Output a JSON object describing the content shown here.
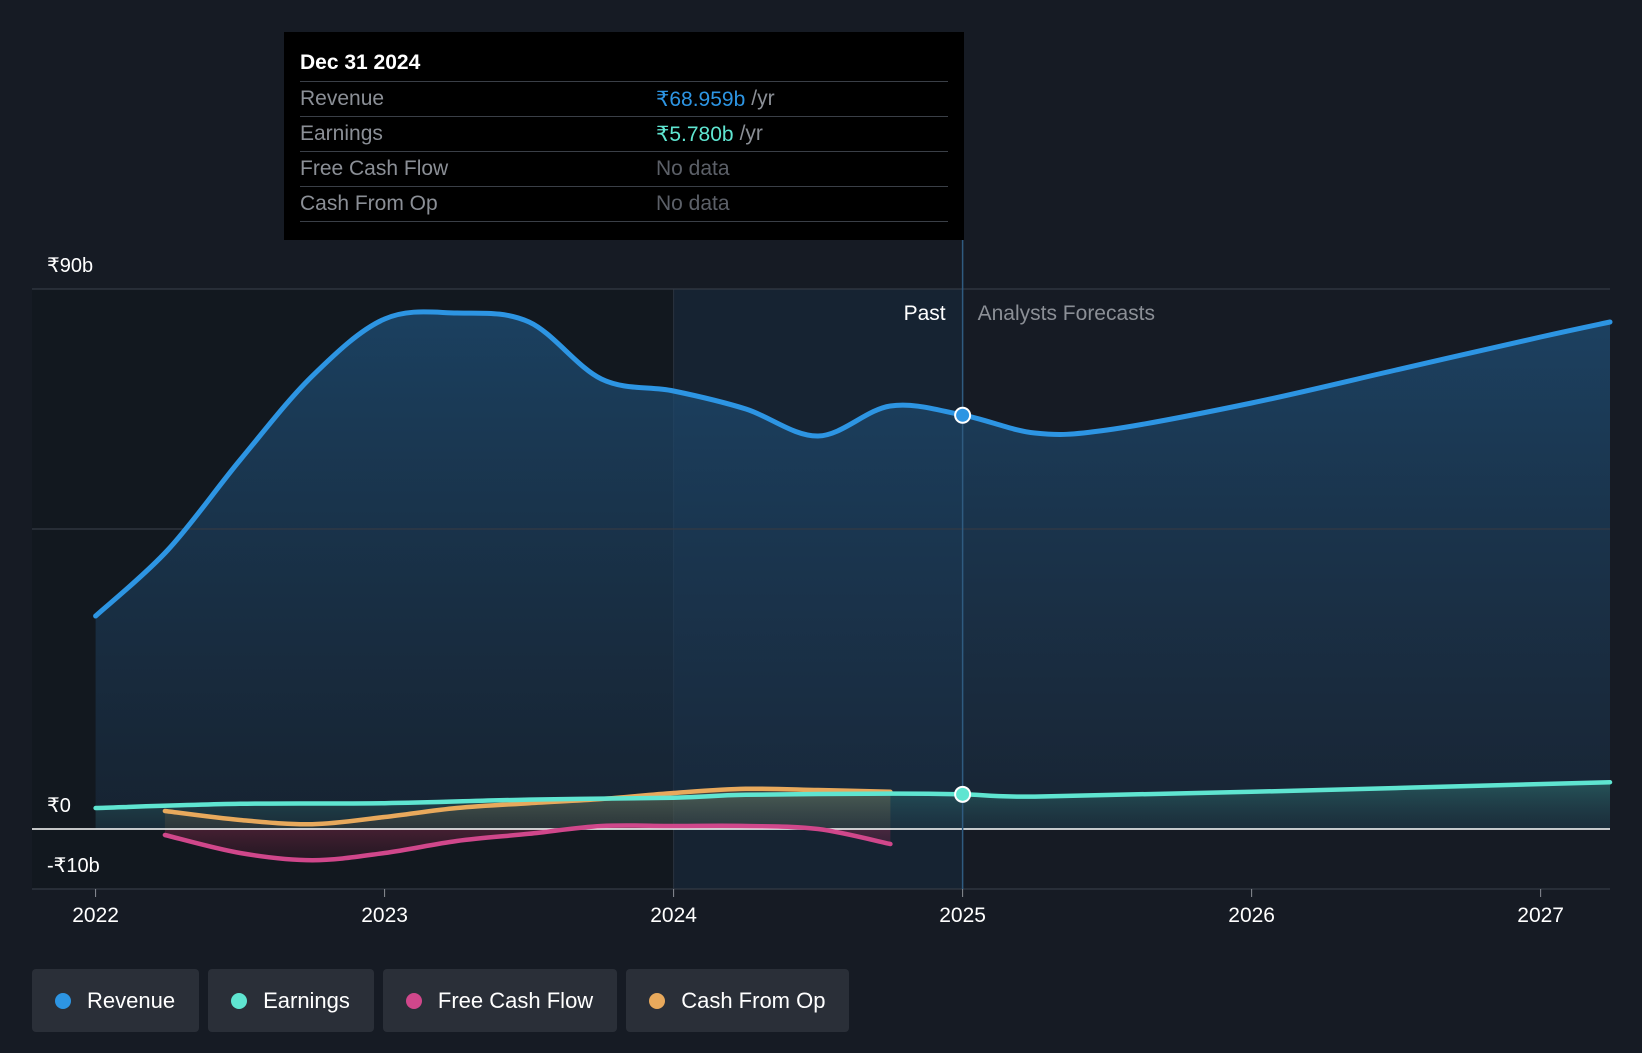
{
  "colors": {
    "background": "#161b24",
    "revenue": "#2d95e3",
    "earnings": "#5fe5d1",
    "free_cash_flow": "#d0478b",
    "cash_from_op": "#e8a95c",
    "grid": "#343a44",
    "axis_text": "#ffffff",
    "past_label": "#ffffff",
    "forecast_label": "#8b8f96"
  },
  "tooltip": {
    "date": "Dec 31 2024",
    "rows": [
      {
        "label": "Revenue",
        "value": "₹68.959b",
        "unit": "/yr",
        "color": "#2d95e3"
      },
      {
        "label": "Earnings",
        "value": "₹5.780b",
        "unit": "/yr",
        "color": "#5fe5d1"
      },
      {
        "label": "Free Cash Flow",
        "value": "No data",
        "unit": "",
        "color": "#5c6068"
      },
      {
        "label": "Cash From Op",
        "value": "No data",
        "unit": "",
        "color": "#5c6068"
      }
    ]
  },
  "chart_data": {
    "type": "line",
    "title": "",
    "xlabel": "",
    "ylabel": "",
    "xlim": [
      2021.78,
      2027.24
    ],
    "ylim": [
      -10,
      90
    ],
    "y_ticks": [
      {
        "value": 90,
        "label": "₹90b"
      },
      {
        "value": 0,
        "label": "₹0"
      },
      {
        "value": -10,
        "label": "-₹10b"
      }
    ],
    "gridlines": [
      90,
      50,
      0,
      -10
    ],
    "x_ticks": [
      {
        "value": 2022,
        "label": "2022"
      },
      {
        "value": 2023,
        "label": "2023"
      },
      {
        "value": 2024,
        "label": "2024"
      },
      {
        "value": 2025,
        "label": "2025"
      },
      {
        "value": 2026,
        "label": "2026"
      },
      {
        "value": 2027,
        "label": "2027"
      }
    ],
    "highlight_range": [
      2024.0,
      2025.0
    ],
    "divider_x": 2025.0,
    "past_label": "Past",
    "forecast_label": "Analysts Forecasts",
    "series": [
      {
        "name": "Revenue",
        "key": "revenue",
        "fill": true,
        "x": [
          2022.0,
          2022.25,
          2022.5,
          2022.75,
          2023.0,
          2023.25,
          2023.5,
          2023.75,
          2024.0,
          2024.25,
          2024.5,
          2024.75,
          2025.0,
          2025.25,
          2025.5,
          2026.0,
          2026.5,
          2027.0,
          2027.24
        ],
        "y": [
          35.5,
          46.5,
          61.5,
          75.5,
          85.0,
          86.0,
          84.5,
          75.0,
          73.0,
          70.0,
          65.5,
          70.5,
          69.0,
          66.0,
          66.5,
          71.0,
          76.5,
          82.0,
          84.5
        ]
      },
      {
        "name": "Earnings",
        "key": "earnings",
        "fill": true,
        "x": [
          2022.0,
          2022.5,
          2023.0,
          2023.5,
          2024.0,
          2024.25,
          2024.75,
          2025.0,
          2025.25,
          2026.0,
          2027.24
        ],
        "y": [
          3.5,
          4.2,
          4.3,
          4.9,
          5.2,
          5.7,
          5.9,
          5.78,
          5.4,
          6.2,
          7.8
        ]
      },
      {
        "name": "Free Cash Flow",
        "key": "free_cash_flow",
        "fill": true,
        "x": [
          2022.24,
          2022.5,
          2022.75,
          2023.0,
          2023.25,
          2023.5,
          2023.75,
          2024.0,
          2024.25,
          2024.5,
          2024.75
        ],
        "y": [
          -1.0,
          -4.0,
          -5.2,
          -4.0,
          -2.0,
          -0.8,
          0.5,
          0.5,
          0.5,
          0.0,
          -2.5
        ]
      },
      {
        "name": "Cash From Op",
        "key": "cash_from_op",
        "fill": true,
        "x": [
          2022.24,
          2022.5,
          2022.75,
          2023.0,
          2023.25,
          2023.5,
          2023.75,
          2024.0,
          2024.25,
          2024.5,
          2024.75
        ],
        "y": [
          3.0,
          1.5,
          0.8,
          2.0,
          3.5,
          4.3,
          5.0,
          6.0,
          6.7,
          6.5,
          6.2
        ]
      }
    ],
    "markers": [
      {
        "series": "Revenue",
        "x": 2025.0,
        "y": 68.959
      },
      {
        "series": "Earnings",
        "x": 2025.0,
        "y": 5.78
      }
    ],
    "legend": [
      {
        "label": "Revenue",
        "color": "#2d95e3"
      },
      {
        "label": "Earnings",
        "color": "#5fe5d1"
      },
      {
        "label": "Free Cash Flow",
        "color": "#d0478b"
      },
      {
        "label": "Cash From Op",
        "color": "#e8a95c"
      }
    ]
  }
}
